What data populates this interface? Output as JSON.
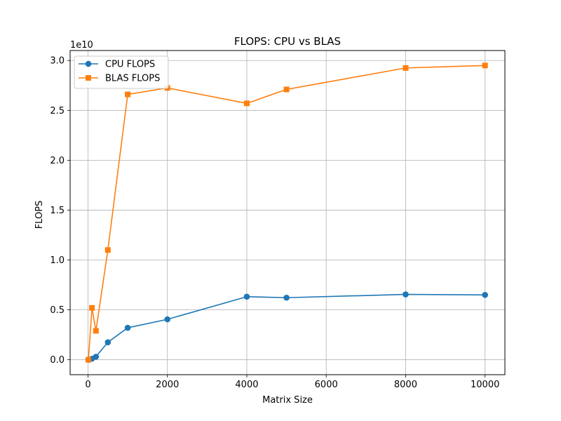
{
  "chart_data": {
    "type": "line",
    "title": "FLOPS: CPU vs BLAS",
    "xlabel": "Matrix Size",
    "ylabel": "FLOPS",
    "y_offset_label": "1e10",
    "xlim": [
      -450,
      10500
    ],
    "ylim": [
      -0.15,
      3.1
    ],
    "y_scale_factor": 10000000000.0,
    "x_ticks": [
      0,
      2000,
      4000,
      6000,
      8000,
      10000
    ],
    "x_tick_labels": [
      "0",
      "2000",
      "4000",
      "6000",
      "8000",
      "10000"
    ],
    "y_ticks": [
      0.0,
      0.5,
      1.0,
      1.5,
      2.0,
      2.5,
      3.0
    ],
    "y_tick_labels": [
      "0.0",
      "0.5",
      "1.0",
      "1.5",
      "2.0",
      "2.5",
      "3.0"
    ],
    "grid": true,
    "legend_position": "top-left",
    "series": [
      {
        "name": "CPU FLOPS",
        "color": "#1f77b4",
        "marker": "circle",
        "x": [
          10,
          100,
          200,
          500,
          1000,
          2000,
          4000,
          5000,
          8000,
          10000
        ],
        "y": [
          0.0,
          0.01,
          0.03,
          0.175,
          0.32,
          0.405,
          0.632,
          0.622,
          0.655,
          0.65
        ]
      },
      {
        "name": "BLAS FLOPS",
        "color": "#ff7f0e",
        "marker": "square",
        "x": [
          10,
          100,
          200,
          500,
          1000,
          2000,
          4000,
          5000,
          8000,
          10000
        ],
        "y": [
          0.0,
          0.52,
          0.29,
          1.1,
          2.66,
          2.725,
          2.57,
          2.71,
          2.925,
          2.95
        ]
      }
    ]
  }
}
